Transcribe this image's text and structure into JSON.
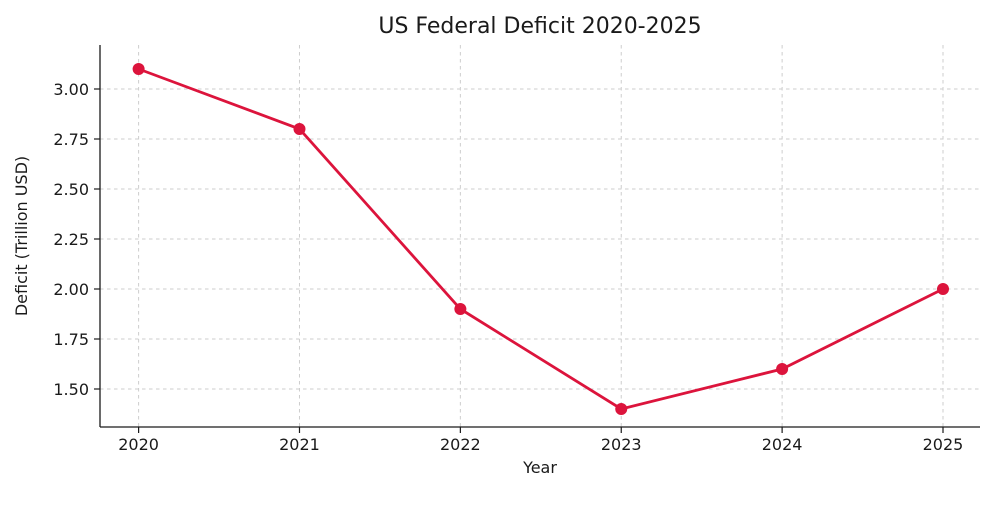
{
  "chart_data": {
    "type": "line",
    "title": "US Federal Deficit 2020-2025",
    "xlabel": "Year",
    "ylabel": "Deficit (Trillion USD)",
    "x": [
      2020,
      2021,
      2022,
      2023,
      2024,
      2025
    ],
    "x_tick_labels": [
      "2020",
      "2021",
      "2022",
      "2023",
      "2024",
      "2025"
    ],
    "y_ticks": [
      1.5,
      1.75,
      2.0,
      2.25,
      2.5,
      2.75,
      3.0
    ],
    "y_tick_labels": [
      "1.50",
      "1.75",
      "2.00",
      "2.25",
      "2.50",
      "2.75",
      "3.00"
    ],
    "series": [
      {
        "name": "US Federal Deficit",
        "values": [
          3.1,
          2.8,
          1.9,
          1.4,
          1.6,
          2.0
        ],
        "color": "#dc143c",
        "marker": "circle"
      }
    ],
    "xlim": [
      2019.76,
      2025.23
    ],
    "ylim": [
      1.31,
      3.22
    ],
    "grid": true,
    "legend_position": "none",
    "colors": {
      "line": "#dc143c",
      "grid": "#cdcdcd",
      "axis": "#1a1a1a",
      "text": "#1a1a1a",
      "background": "#ffffff"
    }
  }
}
